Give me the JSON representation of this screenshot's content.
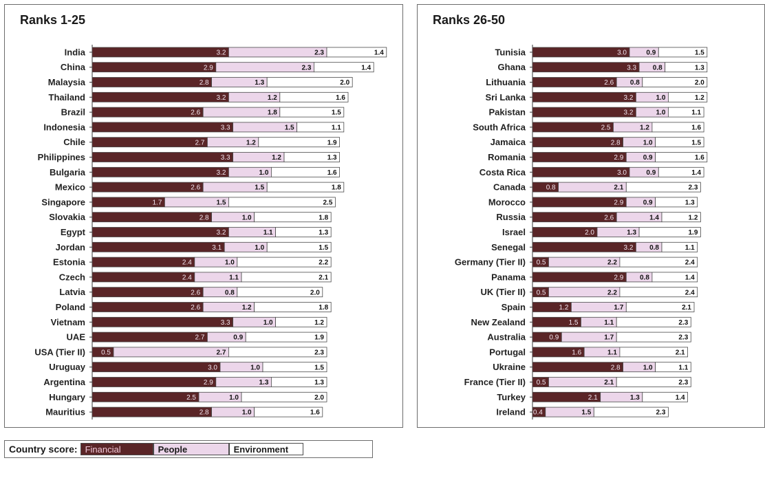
{
  "legend": {
    "title": "Country score:",
    "items": [
      "Financial",
      "People",
      "Environment"
    ]
  },
  "colors": {
    "financial": "#5a2527",
    "people": "#ecd6ea",
    "environment": "#ffffff",
    "border": "#4a4a4a"
  },
  "chart_data": [
    {
      "type": "bar",
      "stacked": true,
      "orientation": "horizontal",
      "title": "Ranks 1-25",
      "series_names": [
        "Financial",
        "People",
        "Environment"
      ],
      "xlim": [
        0,
        7
      ],
      "categories": [
        "India",
        "China",
        "Malaysia",
        "Thailand",
        "Brazil",
        "Indonesia",
        "Chile",
        "Philippines",
        "Bulgaria",
        "Mexico",
        "Singapore",
        "Slovakia",
        "Egypt",
        "Jordan",
        "Estonia",
        "Czech",
        "Latvia",
        "Poland",
        "Vietnam",
        "UAE",
        "USA (Tier II)",
        "Uruguay",
        "Argentina",
        "Hungary",
        "Mauritius"
      ],
      "series": [
        {
          "name": "Financial",
          "values": [
            3.2,
            2.9,
            2.8,
            3.2,
            2.6,
            3.3,
            2.7,
            3.3,
            3.2,
            2.6,
            1.7,
            2.8,
            3.2,
            3.1,
            2.4,
            2.4,
            2.6,
            2.6,
            3.3,
            2.7,
            0.5,
            3.0,
            2.9,
            2.5,
            2.8
          ]
        },
        {
          "name": "People",
          "values": [
            2.3,
            2.3,
            1.3,
            1.2,
            1.8,
            1.5,
            1.2,
            1.2,
            1.0,
            1.5,
            1.5,
            1.0,
            1.1,
            1.0,
            1.0,
            1.1,
            0.8,
            1.2,
            1.0,
            0.9,
            2.7,
            1.0,
            1.3,
            1.0,
            1.0
          ]
        },
        {
          "name": "Environment",
          "values": [
            1.4,
            1.4,
            2.0,
            1.6,
            1.5,
            1.1,
            1.9,
            1.3,
            1.6,
            1.8,
            2.5,
            1.8,
            1.3,
            1.5,
            2.2,
            2.1,
            2.0,
            1.8,
            1.2,
            1.9,
            2.3,
            1.5,
            1.3,
            2.0,
            1.6
          ]
        }
      ]
    },
    {
      "type": "bar",
      "stacked": true,
      "orientation": "horizontal",
      "title": "Ranks 26-50",
      "series_names": [
        "Financial",
        "People",
        "Environment"
      ],
      "xlim": [
        0,
        7
      ],
      "categories": [
        "Tunisia",
        "Ghana",
        "Lithuania",
        "Sri Lanka",
        "Pakistan",
        "South Africa",
        "Jamaica",
        "Romania",
        "Costa Rica",
        "Canada",
        "Morocco",
        "Russia",
        "Israel",
        "Senegal",
        "Germany (Tier II)",
        "Panama",
        "UK (Tier II)",
        "Spain",
        "New Zealand",
        "Australia",
        "Portugal",
        "Ukraine",
        "France (Tier II)",
        "Turkey",
        "Ireland"
      ],
      "series": [
        {
          "name": "Financial",
          "values": [
            3.0,
            3.3,
            2.6,
            3.2,
            3.2,
            2.5,
            2.8,
            2.9,
            3.0,
            0.8,
            2.9,
            2.6,
            2.0,
            3.2,
            0.5,
            2.9,
            0.5,
            1.2,
            1.5,
            0.9,
            1.6,
            2.8,
            0.5,
            2.1,
            0.4
          ]
        },
        {
          "name": "People",
          "values": [
            0.9,
            0.8,
            0.8,
            1.0,
            1.0,
            1.2,
            1.0,
            0.9,
            0.9,
            2.1,
            0.9,
            1.4,
            1.3,
            0.8,
            2.2,
            0.8,
            2.2,
            1.7,
            1.1,
            1.7,
            1.1,
            1.0,
            2.1,
            1.3,
            1.5
          ]
        },
        {
          "name": "Environment",
          "values": [
            1.5,
            1.3,
            2.0,
            1.2,
            1.1,
            1.6,
            1.5,
            1.6,
            1.4,
            2.3,
            1.3,
            1.2,
            1.9,
            1.1,
            2.4,
            1.4,
            2.4,
            2.1,
            2.3,
            2.3,
            2.1,
            1.1,
            2.3,
            1.4,
            2.3
          ]
        }
      ]
    }
  ]
}
